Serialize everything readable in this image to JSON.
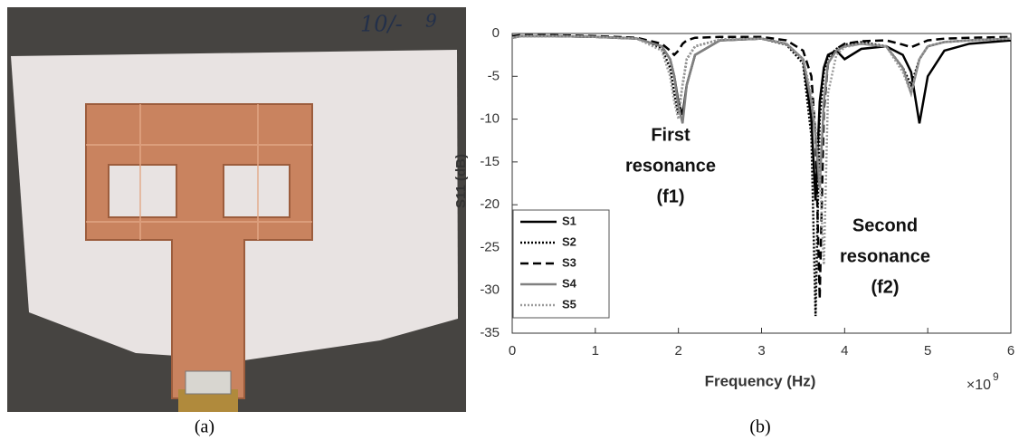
{
  "photo": {
    "handwriting": [
      "10/-",
      "9"
    ],
    "caption": "(a)"
  },
  "chart_data": {
    "type": "line",
    "caption": "(b)",
    "x_label": "Frequency (Hz)",
    "y_label": "S11 (dB)",
    "x_multiplier": {
      "base": "×10",
      "exponent": "9"
    },
    "annotations": [
      [
        "First",
        "resonance",
        "(f1)"
      ],
      [
        "Second",
        "resonance",
        "(f2)"
      ]
    ],
    "xlim": [
      0,
      6
    ],
    "xticks": [
      0,
      1,
      2,
      3,
      4,
      5,
      6
    ],
    "ylim": [
      -35,
      0
    ],
    "yticks": [
      0,
      -5,
      -10,
      -15,
      -20,
      -25,
      -30,
      -35
    ],
    "legend": "lower-left",
    "x": [
      0,
      0.1,
      0.5,
      1,
      1.5,
      1.8,
      1.9,
      1.95,
      2,
      2.05,
      2.1,
      2.2,
      2.5,
      3,
      3.3,
      3.5,
      3.6,
      3.65,
      3.7,
      3.75,
      3.8,
      3.9,
      4,
      4.2,
      4.5,
      4.7,
      4.8,
      4.9,
      5,
      5.2,
      5.5,
      6
    ],
    "series": [
      {
        "name": "S1",
        "color": "#000000",
        "dash": "solid",
        "values": [
          -0.5,
          -0.3,
          -0.3,
          -0.4,
          -0.6,
          -1.5,
          -3,
          -5,
          -8,
          -9.5,
          -6,
          -2.5,
          -0.8,
          -0.6,
          -1.2,
          -3,
          -10,
          -19.5,
          -8,
          -4,
          -2.5,
          -2,
          -3,
          -1.8,
          -1.5,
          -2.5,
          -4.5,
          -10.5,
          -5,
          -2,
          -1.2,
          -0.8
        ]
      },
      {
        "name": "S2",
        "color": "#000000",
        "dash": "dotted",
        "values": [
          -0.5,
          -0.3,
          -0.3,
          -0.4,
          -0.6,
          -1.8,
          -4,
          -7,
          -9.5,
          -6,
          -3,
          -1.5,
          -0.7,
          -0.6,
          -1.3,
          -3.5,
          -12,
          -33,
          -10,
          -4.5,
          -2.8,
          -1.8,
          -1.3,
          -1,
          -1.5,
          -4,
          -6,
          -3,
          -1.5,
          -1,
          -0.8,
          -0.6
        ]
      },
      {
        "name": "S3",
        "color": "#000000",
        "dash": "dashed",
        "values": [
          -0.3,
          -0.2,
          -0.2,
          -0.3,
          -0.5,
          -1.2,
          -2,
          -2.5,
          -2,
          -1.2,
          -0.8,
          -0.5,
          -0.4,
          -0.4,
          -0.8,
          -2,
          -5,
          -12,
          -31,
          -9,
          -3.5,
          -1.8,
          -1.2,
          -0.9,
          -0.8,
          -1.3,
          -1.6,
          -1.2,
          -0.8,
          -0.6,
          -0.5,
          -0.4
        ]
      },
      {
        "name": "S4",
        "color": "#808080",
        "dash": "solid",
        "values": [
          -0.5,
          -0.3,
          -0.3,
          -0.4,
          -0.6,
          -1.5,
          -3,
          -5,
          -8.5,
          -10.5,
          -6,
          -2.5,
          -0.8,
          -0.6,
          -1.2,
          -3,
          -8,
          -12,
          -18,
          -8,
          -3.5,
          -2,
          -1.5,
          -1.2,
          -1.5,
          -4,
          -7,
          -3,
          -1.5,
          -1,
          -0.8,
          -0.6
        ]
      },
      {
        "name": "S5",
        "color": "#9a9a9a",
        "dash": "dotted",
        "values": [
          -0.5,
          -0.3,
          -0.3,
          -0.4,
          -0.6,
          -2,
          -5,
          -8,
          -10,
          -6,
          -3,
          -1.5,
          -0.7,
          -0.6,
          -1.2,
          -3,
          -7,
          -11,
          -16,
          -27,
          -7,
          -2.5,
          -1.6,
          -1.2,
          -1.5,
          -4.5,
          -7,
          -3,
          -1.5,
          -1,
          -0.8,
          -0.6
        ]
      }
    ]
  }
}
